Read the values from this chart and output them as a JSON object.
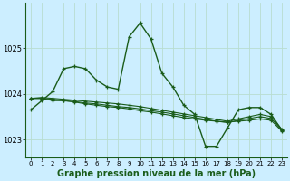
{
  "xlabel": "Graphe pression niveau de la mer (hPa)",
  "bg_color": "#cceeff",
  "grid_color": "#b8ddd0",
  "line_color": "#1a5c1a",
  "ylim": [
    1022.6,
    1026.0
  ],
  "yticks": [
    1023,
    1024,
    1025
  ],
  "series": [
    [
      1023.65,
      1023.85,
      1024.05,
      1024.55,
      1024.6,
      1024.55,
      1024.3,
      1024.15,
      1024.1,
      1025.25,
      1025.55,
      1025.2,
      1024.45,
      1024.15,
      1023.75,
      1023.55,
      1022.85,
      1022.85,
      1023.25,
      1023.65,
      1023.7,
      1023.7,
      1023.55,
      1023.2
    ],
    [
      1023.9,
      1023.9,
      1023.85,
      1023.85,
      1023.82,
      1023.78,
      1023.75,
      1023.72,
      1023.7,
      1023.67,
      1023.63,
      1023.6,
      1023.56,
      1023.52,
      1023.48,
      1023.45,
      1023.42,
      1023.4,
      1023.38,
      1023.4,
      1023.42,
      1023.45,
      1023.42,
      1023.18
    ],
    [
      1023.9,
      1023.9,
      1023.88,
      1023.85,
      1023.83,
      1023.8,
      1023.78,
      1023.75,
      1023.72,
      1023.7,
      1023.67,
      1023.63,
      1023.6,
      1023.56,
      1023.52,
      1023.48,
      1023.44,
      1023.4,
      1023.37,
      1023.42,
      1023.46,
      1023.5,
      1023.46,
      1023.2
    ],
    [
      1023.9,
      1023.92,
      1023.9,
      1023.88,
      1023.86,
      1023.84,
      1023.82,
      1023.8,
      1023.78,
      1023.75,
      1023.72,
      1023.68,
      1023.64,
      1023.6,
      1023.56,
      1023.52,
      1023.48,
      1023.44,
      1023.4,
      1023.45,
      1023.5,
      1023.55,
      1023.5,
      1023.22
    ]
  ]
}
